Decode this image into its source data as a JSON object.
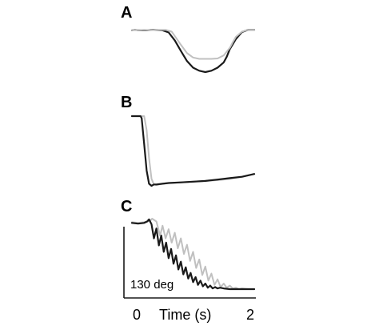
{
  "chart_data": [
    {
      "type": "line",
      "panel_label": "A",
      "xlabel": "",
      "ylabel": "",
      "colors": {
        "dark": "#1a1a1a",
        "light": "#c0c0c0"
      },
      "series": [
        {
          "color": "dark",
          "x": [
            0,
            0.05,
            0.1,
            0.18,
            0.25,
            0.35,
            0.5,
            0.6,
            0.7,
            0.8,
            0.9,
            1.0,
            1.1,
            1.2,
            1.3,
            1.4,
            1.5,
            1.55,
            1.6,
            1.7,
            1.8,
            1.9,
            2.0
          ],
          "y": [
            0.95,
            0.96,
            0.95,
            0.95,
            0.95,
            0.96,
            0.95,
            0.9,
            0.72,
            0.48,
            0.25,
            0.1,
            0.03,
            0.0,
            0.03,
            0.1,
            0.22,
            0.35,
            0.52,
            0.75,
            0.91,
            0.96,
            0.96
          ]
        },
        {
          "color": "light",
          "x": [
            0,
            0.05,
            0.1,
            0.2,
            0.3,
            0.4,
            0.55,
            0.65,
            0.7,
            0.8,
            0.9,
            1.0,
            1.1,
            1.2,
            1.3,
            1.4,
            1.5,
            1.6,
            1.65,
            1.7,
            1.8,
            1.9,
            2.0
          ],
          "y": [
            0.95,
            0.96,
            0.95,
            0.96,
            0.95,
            0.96,
            0.96,
            0.92,
            0.82,
            0.62,
            0.43,
            0.33,
            0.3,
            0.3,
            0.3,
            0.31,
            0.38,
            0.55,
            0.68,
            0.8,
            0.92,
            0.96,
            0.96
          ]
        }
      ]
    },
    {
      "type": "line",
      "panel_label": "B",
      "xlabel": "",
      "ylabel": "",
      "series": [
        {
          "color": "light",
          "x": [
            0,
            0.08,
            0.16,
            0.2,
            0.24,
            0.28,
            0.32,
            0.36,
            0.4,
            0.45,
            0.5,
            0.6,
            0.8,
            1.0,
            1.2,
            1.4,
            1.6,
            1.8,
            2.0
          ],
          "y": [
            1.0,
            1.0,
            1.0,
            1.0,
            0.8,
            0.4,
            0.1,
            0.02,
            0.01,
            0.02,
            0.03,
            0.04,
            0.05,
            0.06,
            0.07,
            0.08,
            0.1,
            0.13,
            0.17
          ]
        },
        {
          "color": "dark",
          "x": [
            0,
            0.08,
            0.14,
            0.16,
            0.2,
            0.24,
            0.28,
            0.32,
            0.36,
            0.4,
            0.5,
            0.6,
            0.8,
            1.0,
            1.2,
            1.4,
            1.6,
            1.8,
            2.0
          ],
          "y": [
            1.0,
            1.0,
            1.0,
            0.97,
            0.6,
            0.22,
            0.03,
            0.0,
            0.02,
            0.02,
            0.03,
            0.04,
            0.05,
            0.06,
            0.07,
            0.09,
            0.11,
            0.13,
            0.17
          ]
        }
      ]
    },
    {
      "type": "line",
      "panel_label": "C",
      "xlabel": "Time (s)",
      "ylabel": "",
      "x_ticks": [
        "0",
        "2"
      ],
      "xlim": [
        0,
        2
      ],
      "scale_bar_label": "130 deg",
      "series": [
        {
          "color": "light",
          "x": [
            0.0,
            0.1,
            0.2,
            0.3,
            0.33,
            0.4,
            0.46,
            0.5,
            0.55,
            0.6,
            0.65,
            0.7,
            0.75,
            0.8,
            0.85,
            0.9,
            0.95,
            1.0,
            1.05,
            1.1,
            1.15,
            1.2,
            1.25,
            1.3,
            1.35,
            1.4,
            1.45,
            1.5,
            1.55,
            1.6,
            1.65,
            1.7,
            1.75,
            1.8,
            1.9,
            2.0
          ],
          "y": [
            0.95,
            0.94,
            0.95,
            0.97,
            1.0,
            0.96,
            0.76,
            0.9,
            0.72,
            0.85,
            0.66,
            0.8,
            0.58,
            0.72,
            0.5,
            0.63,
            0.4,
            0.53,
            0.3,
            0.42,
            0.2,
            0.32,
            0.12,
            0.22,
            0.06,
            0.14,
            0.03,
            0.08,
            0.02,
            0.05,
            0.01,
            0.02,
            0.0,
            0.01,
            0.0,
            0.0
          ]
        },
        {
          "color": "dark",
          "x": [
            0.0,
            0.1,
            0.2,
            0.25,
            0.28,
            0.32,
            0.36,
            0.4,
            0.44,
            0.48,
            0.52,
            0.56,
            0.6,
            0.64,
            0.68,
            0.72,
            0.76,
            0.8,
            0.84,
            0.88,
            0.92,
            0.96,
            1.0,
            1.04,
            1.08,
            1.12,
            1.16,
            1.2,
            1.24,
            1.28,
            1.32,
            1.36,
            1.4,
            1.44,
            1.5,
            1.6,
            1.7,
            1.8,
            1.9,
            2.0
          ],
          "y": [
            0.94,
            0.93,
            0.94,
            0.96,
            0.99,
            0.92,
            0.72,
            0.86,
            0.62,
            0.76,
            0.53,
            0.66,
            0.44,
            0.57,
            0.36,
            0.48,
            0.28,
            0.39,
            0.21,
            0.31,
            0.15,
            0.23,
            0.1,
            0.17,
            0.06,
            0.12,
            0.04,
            0.08,
            0.02,
            0.05,
            0.01,
            0.03,
            0.01,
            0.02,
            0.01,
            0.0,
            0.0,
            0.0,
            0.0,
            0.0
          ]
        }
      ]
    }
  ]
}
